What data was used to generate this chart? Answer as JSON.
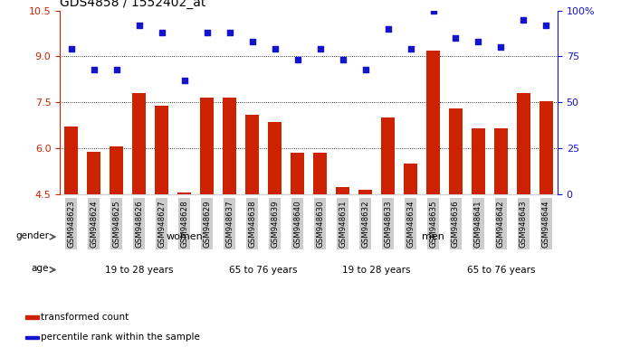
{
  "title": "GDS4858 / 1552402_at",
  "samples": [
    "GSM948623",
    "GSM948624",
    "GSM948625",
    "GSM948626",
    "GSM948627",
    "GSM948628",
    "GSM948629",
    "GSM948637",
    "GSM948638",
    "GSM948639",
    "GSM948640",
    "GSM948630",
    "GSM948631",
    "GSM948632",
    "GSM948633",
    "GSM948634",
    "GSM948635",
    "GSM948636",
    "GSM948641",
    "GSM948642",
    "GSM948643",
    "GSM948644"
  ],
  "bar_values": [
    6.7,
    5.9,
    6.05,
    7.8,
    7.4,
    4.55,
    7.65,
    7.65,
    7.1,
    6.85,
    5.85,
    5.85,
    4.75,
    4.65,
    7.0,
    5.5,
    9.2,
    7.3,
    6.65,
    6.65,
    7.8,
    7.55
  ],
  "dot_values": [
    79,
    68,
    68,
    92,
    88,
    62,
    88,
    88,
    83,
    79,
    73,
    79,
    73,
    68,
    90,
    79,
    100,
    85,
    83,
    80,
    95,
    92
  ],
  "ylim_left": [
    4.5,
    10.5
  ],
  "ylim_right": [
    0,
    100
  ],
  "yticks_left": [
    4.5,
    6.0,
    7.5,
    9.0,
    10.5
  ],
  "yticks_right": [
    0,
    25,
    50,
    75,
    100
  ],
  "bar_color": "#CC2200",
  "dot_color": "#1414CC",
  "bg_color": "#FFFFFF",
  "gender_groups": [
    {
      "label": "women",
      "start": 0,
      "end": 11,
      "color": "#99EE99"
    },
    {
      "label": "men",
      "start": 11,
      "end": 22,
      "color": "#33DD55"
    }
  ],
  "age_groups": [
    {
      "label": "19 to 28 years",
      "start": 0,
      "end": 7,
      "color": "#EE88EE"
    },
    {
      "label": "65 to 76 years",
      "start": 7,
      "end": 11,
      "color": "#CC44CC"
    },
    {
      "label": "19 to 28 years",
      "start": 11,
      "end": 17,
      "color": "#EE88EE"
    },
    {
      "label": "65 to 76 years",
      "start": 17,
      "end": 22,
      "color": "#CC44CC"
    }
  ],
  "legend_items": [
    {
      "label": "transformed count",
      "color": "#CC2200"
    },
    {
      "label": "percentile rank within the sample",
      "color": "#1414CC"
    }
  ]
}
